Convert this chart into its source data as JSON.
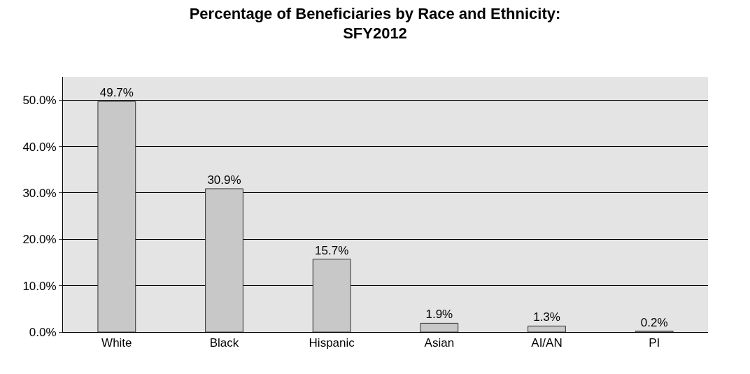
{
  "chart_data": {
    "type": "bar",
    "title": "Percentage of Beneficiaries by Race and Ethnicity:\nSFY2012",
    "categories": [
      "White",
      "Black",
      "Hispanic",
      "Asian",
      "AI/AN",
      "PI"
    ],
    "values": [
      49.7,
      30.9,
      15.7,
      1.9,
      1.3,
      0.2
    ],
    "value_labels": [
      "49.7%",
      "30.9%",
      "15.7%",
      "1.9%",
      "1.3%",
      "0.2%"
    ],
    "color": "#c8c8c8",
    "ylim": [
      0,
      55
    ],
    "yticks": [
      {
        "value": 0,
        "label": "0.0%"
      },
      {
        "value": 10,
        "label": "10.0%"
      },
      {
        "value": 20,
        "label": "20.0%"
      },
      {
        "value": 30,
        "label": "30.0%"
      },
      {
        "value": 40,
        "label": "40.0%"
      },
      {
        "value": 50,
        "label": "50.0%"
      }
    ],
    "grid": "y",
    "legend": false
  }
}
